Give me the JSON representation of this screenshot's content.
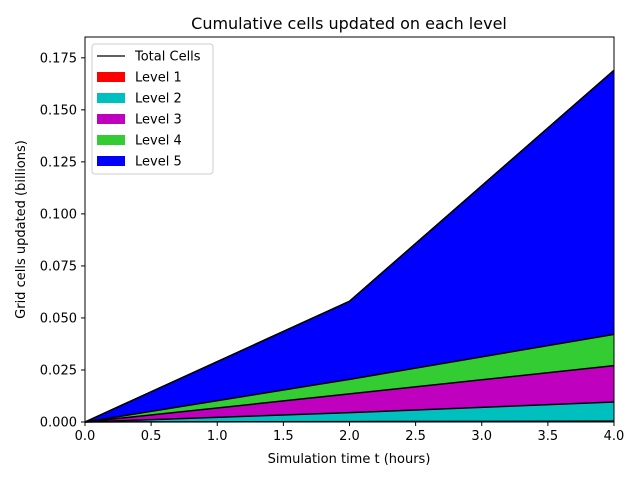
{
  "chart_data": {
    "type": "area",
    "title": "Cumulative cells updated on each level",
    "xlabel": "Simulation time t (hours)",
    "ylabel": "Grid cells updated (billions)",
    "xlim": [
      0,
      4
    ],
    "ylim": [
      0,
      0.185
    ],
    "x_ticks": [
      "0.0",
      "0.5",
      "1.0",
      "1.5",
      "2.0",
      "2.5",
      "3.0",
      "3.5",
      "4.0"
    ],
    "y_ticks": [
      "0.000",
      "0.025",
      "0.050",
      "0.075",
      "0.100",
      "0.125",
      "0.150",
      "0.175"
    ],
    "x": [
      0,
      2,
      4
    ],
    "stacked": true,
    "grid": false,
    "legend_position": "top-left",
    "series": [
      {
        "name": "Level 1",
        "color": "#ff0000",
        "values": [
          0,
          0.0002,
          0.0004
        ]
      },
      {
        "name": "Level 2",
        "color": "#00bfbf",
        "values": [
          0,
          0.0043,
          0.0092
        ]
      },
      {
        "name": "Level 3",
        "color": "#bf00bf",
        "values": [
          0,
          0.009,
          0.0175
        ]
      },
      {
        "name": "Level 4",
        "color": "#33cc33",
        "values": [
          0,
          0.007,
          0.015
        ]
      },
      {
        "name": "Level 5",
        "color": "#0000ff",
        "values": [
          0,
          0.0375,
          0.1269
        ]
      }
    ],
    "total_line": {
      "name": "Total Cells",
      "color": "#000000",
      "values": [
        0,
        0.058,
        0.169
      ]
    }
  }
}
